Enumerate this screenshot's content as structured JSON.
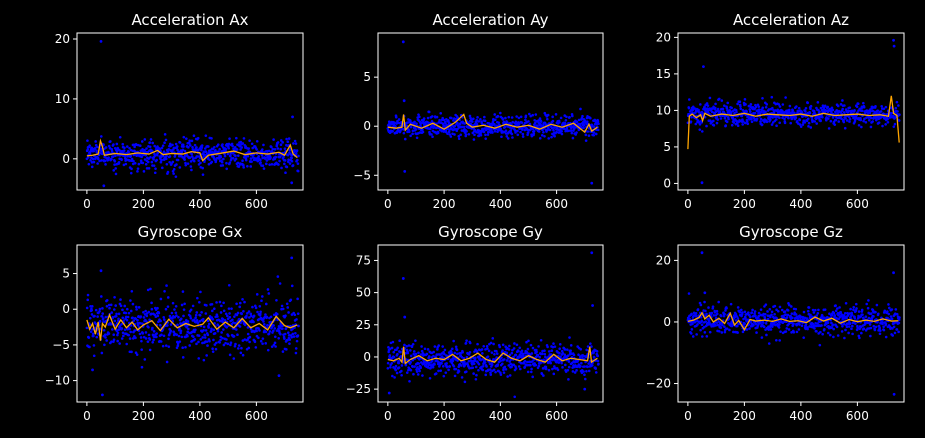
{
  "theme": {
    "background": "#000000",
    "foreground": "#ffffff",
    "point_color": "#0000ff",
    "line_color": "#ffa500"
  },
  "chart_data": [
    {
      "type": "scatter",
      "title": "Acceleration Ax",
      "xlim": [
        -35,
        765
      ],
      "ylim": [
        -5.2,
        21
      ],
      "xticks": [
        0,
        200,
        400,
        600
      ],
      "yticks": [
        0,
        10,
        20
      ],
      "grid": false,
      "noise_center": 0.8,
      "noise_spread": 1.2,
      "smoothed_line": {
        "x": [
          0,
          20,
          40,
          48,
          54,
          62,
          75,
          100,
          140,
          180,
          220,
          250,
          270,
          300,
          340,
          370,
          400,
          410,
          430,
          470,
          520,
          560,
          600,
          640,
          680,
          700,
          720,
          730,
          745
        ],
        "y": [
          0.5,
          0.6,
          0.8,
          3.0,
          2.2,
          0.6,
          0.7,
          0.9,
          0.7,
          1.0,
          0.8,
          1.4,
          0.7,
          0.9,
          0.8,
          1.2,
          1.0,
          -0.3,
          0.6,
          0.9,
          1.3,
          0.7,
          1.0,
          0.8,
          1.1,
          0.6,
          2.3,
          0.8,
          0.2
        ]
      },
      "outliers": [
        {
          "x": 50,
          "y": 19.6
        },
        {
          "x": 728,
          "y": 7.0
        },
        {
          "x": 725,
          "y": -4.0
        },
        {
          "x": 60,
          "y": -4.5
        }
      ]
    },
    {
      "type": "scatter",
      "title": "Acceleration Ay",
      "xlim": [
        -35,
        765
      ],
      "ylim": [
        -6.5,
        9.5
      ],
      "xticks": [
        0,
        200,
        400,
        600
      ],
      "yticks": [
        -5,
        0,
        5
      ],
      "grid": false,
      "noise_center": 0.0,
      "noise_spread": 0.55,
      "smoothed_line": {
        "x": [
          0,
          30,
          50,
          56,
          62,
          80,
          120,
          160,
          200,
          240,
          270,
          280,
          300,
          340,
          380,
          420,
          460,
          500,
          540,
          580,
          620,
          660,
          700,
          715,
          725,
          745
        ],
        "y": [
          -0.1,
          -0.2,
          -0.1,
          1.2,
          -0.4,
          0.2,
          -0.2,
          0.3,
          -0.3,
          0.4,
          1.2,
          0.3,
          -0.1,
          0.1,
          -0.2,
          0.2,
          -0.1,
          0.1,
          -0.3,
          0.2,
          -0.1,
          0.3,
          -0.6,
          0.2,
          -0.5,
          -0.1
        ]
      },
      "outliers": [
        {
          "x": 55,
          "y": 8.6
        },
        {
          "x": 60,
          "y": -4.6
        },
        {
          "x": 725,
          "y": -5.8
        },
        {
          "x": 58,
          "y": 2.6
        }
      ]
    },
    {
      "type": "scatter",
      "title": "Acceleration Az",
      "xlim": [
        -35,
        765
      ],
      "ylim": [
        -0.9,
        20.6
      ],
      "xticks": [
        0,
        200,
        400,
        600
      ],
      "yticks": [
        0,
        5,
        10,
        15,
        20
      ],
      "grid": false,
      "noise_center": 9.4,
      "noise_spread": 0.8,
      "smoothed_line": {
        "x": [
          0,
          5,
          15,
          30,
          45,
          52,
          60,
          80,
          120,
          160,
          200,
          240,
          280,
          320,
          360,
          400,
          440,
          480,
          520,
          560,
          600,
          640,
          680,
          710,
          720,
          728,
          740,
          748
        ],
        "y": [
          4.7,
          9.2,
          9.5,
          9.0,
          9.4,
          8.6,
          9.6,
          9.2,
          9.5,
          9.3,
          9.6,
          9.2,
          9.5,
          9.4,
          9.3,
          9.5,
          9.2,
          9.6,
          9.3,
          9.4,
          9.5,
          9.3,
          9.4,
          9.2,
          12.0,
          9.6,
          9.3,
          5.6
        ]
      },
      "outliers": [
        {
          "x": 55,
          "y": 16.0
        },
        {
          "x": 50,
          "y": 0.1
        },
        {
          "x": 728,
          "y": 19.6
        },
        {
          "x": 730,
          "y": 18.8
        }
      ]
    },
    {
      "type": "scatter",
      "title": "Gyroscope Gx",
      "xlim": [
        -35,
        765
      ],
      "ylim": [
        -13,
        9
      ],
      "xticks": [
        0,
        200,
        400,
        600
      ],
      "yticks": [
        -10,
        -5,
        0,
        5
      ],
      "grid": false,
      "noise_center": -2.2,
      "noise_spread": 1.9,
      "smoothed_line": {
        "x": [
          0,
          10,
          20,
          30,
          40,
          48,
          55,
          65,
          80,
          100,
          120,
          140,
          160,
          180,
          200,
          230,
          260,
          290,
          320,
          350,
          380,
          410,
          430,
          460,
          490,
          520,
          550,
          580,
          610,
          640,
          670,
          700,
          720,
          745
        ],
        "y": [
          -1.5,
          -2.8,
          -2.0,
          -3.5,
          -1.8,
          -4.4,
          -2.0,
          -2.5,
          -0.8,
          -2.8,
          -1.5,
          -2.6,
          -1.8,
          -2.9,
          -2.2,
          -1.6,
          -3.0,
          -1.4,
          -2.6,
          -2.0,
          -2.4,
          -2.1,
          -1.2,
          -2.8,
          -1.8,
          -2.6,
          -1.3,
          -2.6,
          -2.0,
          -2.9,
          -1.0,
          -2.3,
          -2.6,
          -2.2
        ]
      },
      "outliers": [
        {
          "x": 50,
          "y": 5.4
        },
        {
          "x": 55,
          "y": -12.0
        },
        {
          "x": 725,
          "y": 7.2
        },
        {
          "x": 680,
          "y": -9.3
        },
        {
          "x": 20,
          "y": -8.5
        }
      ]
    },
    {
      "type": "scatter",
      "title": "Gyroscope Gy",
      "xlim": [
        -35,
        765
      ],
      "ylim": [
        -35,
        87
      ],
      "xticks": [
        0,
        200,
        400,
        600
      ],
      "yticks": [
        -25,
        0,
        25,
        50,
        75
      ],
      "grid": false,
      "noise_center": -2.0,
      "noise_spread": 6.5,
      "smoothed_line": {
        "x": [
          0,
          20,
          40,
          50,
          56,
          62,
          80,
          110,
          140,
          170,
          200,
          230,
          260,
          290,
          320,
          350,
          380,
          410,
          440,
          470,
          500,
          530,
          560,
          590,
          620,
          650,
          680,
          710,
          718,
          724,
          745
        ],
        "y": [
          -2,
          -3,
          -1,
          -4,
          8,
          -5,
          -2,
          1,
          -3,
          -1,
          -2,
          2,
          -3,
          -1,
          3,
          -2,
          -4,
          3,
          -1,
          -3,
          1,
          -2,
          -4,
          2,
          -3,
          -1,
          -2,
          -3,
          8,
          -4,
          -1
        ]
      },
      "outliers": [
        {
          "x": 55,
          "y": 61
        },
        {
          "x": 60,
          "y": 31
        },
        {
          "x": 725,
          "y": 81
        },
        {
          "x": 728,
          "y": 40
        },
        {
          "x": 5,
          "y": -28
        },
        {
          "x": 700,
          "y": -25
        }
      ]
    },
    {
      "type": "scatter",
      "title": "Gyroscope Gz",
      "xlim": [
        -35,
        765
      ],
      "ylim": [
        -26,
        25
      ],
      "xticks": [
        0,
        200,
        400,
        600
      ],
      "yticks": [
        -20,
        0,
        20
      ],
      "grid": false,
      "noise_center": 0.5,
      "noise_spread": 2.3,
      "smoothed_line": {
        "x": [
          0,
          20,
          40,
          50,
          60,
          75,
          90,
          110,
          130,
          150,
          165,
          180,
          200,
          220,
          240,
          270,
          300,
          330,
          360,
          390,
          420,
          450,
          480,
          510,
          540,
          570,
          600,
          630,
          660,
          690,
          720,
          745
        ],
        "y": [
          0.2,
          0.6,
          1.5,
          3.0,
          1.0,
          2.2,
          0.0,
          1.2,
          -0.5,
          2.8,
          -1.0,
          0.5,
          -2.5,
          0.8,
          0.3,
          0.6,
          0.2,
          1.0,
          0.2,
          0.4,
          -0.2,
          1.6,
          0.3,
          1.2,
          -0.4,
          0.8,
          0.1,
          0.6,
          0.2,
          1.0,
          0.3,
          0.4
        ]
      },
      "outliers": [
        {
          "x": 50,
          "y": 22.5
        },
        {
          "x": 60,
          "y": 9.5
        },
        {
          "x": 728,
          "y": 16.0
        },
        {
          "x": 730,
          "y": -23.5
        }
      ]
    }
  ]
}
